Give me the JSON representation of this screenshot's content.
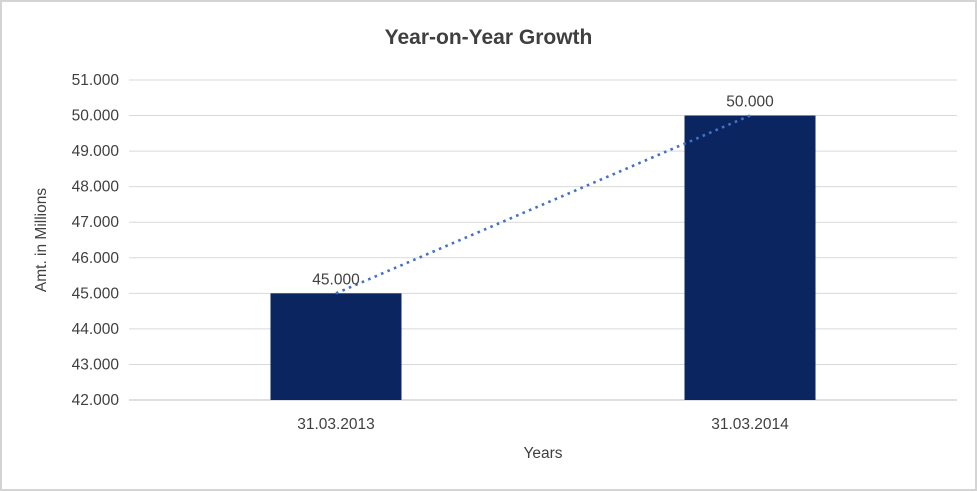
{
  "chart_data": {
    "type": "bar",
    "title": "Year-on-Year Growth",
    "xlabel": "Years",
    "ylabel": "Amt. in Millions",
    "categories": [
      "31.03.2013",
      "31.03.2014"
    ],
    "values": [
      45000,
      50000
    ],
    "value_labels": [
      "45.000",
      "50.000"
    ],
    "ylim": [
      42000,
      51000
    ],
    "yticks": [
      {
        "value": 42000,
        "label": "42.000"
      },
      {
        "value": 43000,
        "label": "43.000"
      },
      {
        "value": 44000,
        "label": "44.000"
      },
      {
        "value": 45000,
        "label": "45.000"
      },
      {
        "value": 46000,
        "label": "46.000"
      },
      {
        "value": 47000,
        "label": "47.000"
      },
      {
        "value": 48000,
        "label": "48.000"
      },
      {
        "value": 49000,
        "label": "49.000"
      },
      {
        "value": 50000,
        "label": "50.000"
      },
      {
        "value": 51000,
        "label": "51.000"
      }
    ],
    "trendline": {
      "style": "dotted",
      "from_value": 45000,
      "to_value": 50000
    },
    "legend": "none",
    "grid": "horizontal"
  },
  "colors": {
    "bar": "#0A2560",
    "trendline": "#4472C4",
    "gridline": "#D9D9D9",
    "axis_line": "#CCCCCC",
    "text": "#404040",
    "title": "#3F3F3F",
    "background": "#FFFFFF",
    "border": "#D4D4D4"
  }
}
